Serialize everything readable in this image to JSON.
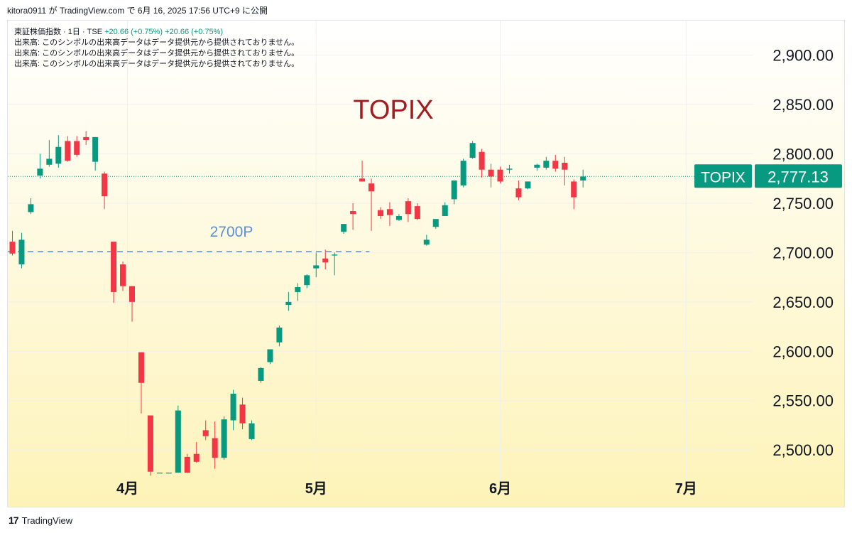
{
  "header": {
    "attribution": "kitora0911 が TradingView.com で 6月 16, 2025 17:56 UTC+9 に公開"
  },
  "legend": {
    "symbol_line": "東証株価指数 · 1日 · TSE",
    "change_1": "+20.66 (+0.75%)",
    "change_2": "+20.66 (+0.75%)",
    "volume_notes": [
      "出来高: このシンボルの出来高データはデータ提供元から提供されておりません。",
      "出来高: このシンボルの出来高データはデータ提供元から提供されておりません。",
      "出来高: このシンボルの出来高データはデータ提供元から提供されておりません。"
    ]
  },
  "footer": {
    "logo_text": "TradingView"
  },
  "colors": {
    "up": "#089981",
    "down": "#f23645",
    "title": "#a11d21",
    "annotation": "#5b8fd8",
    "price_label_bg": "#089981",
    "bg_top": "#ffffff",
    "bg_bottom": "#fdf3b8"
  },
  "chart_data": {
    "type": "candlestick",
    "title": "TOPIX",
    "annotation": "2700P",
    "reference_line": 2701,
    "last_price_label": "2,777.13",
    "last_price_value": 2777.13,
    "last_price_symbol": "TOPIX",
    "y_ticks": [
      2500,
      2550,
      2600,
      2650,
      2700,
      2750,
      2800,
      2850,
      2900
    ],
    "y_tick_labels": [
      "2,500.00",
      "2,550.00",
      "2,600.00",
      "2,650.00",
      "2,700.00",
      "2,750.00",
      "2,800.00",
      "2,850.00",
      "2,900.00"
    ],
    "ylim": [
      2467,
      2935
    ],
    "x_ticks": [
      {
        "label": "4月",
        "index": 12.5
      },
      {
        "label": "5月",
        "index": 33
      },
      {
        "label": "6月",
        "index": 53
      },
      {
        "label": "7月",
        "index": 73.2
      }
    ],
    "xlim": [
      -0.5,
      80.5
    ],
    "candles": [
      {
        "i": 0,
        "o": 2711,
        "h": 2722,
        "l": 2697,
        "c": 2699
      },
      {
        "i": 1,
        "o": 2688,
        "h": 2720,
        "l": 2684,
        "c": 2713
      },
      {
        "i": 2,
        "o": 2741,
        "h": 2755,
        "l": 2739,
        "c": 2749
      },
      {
        "i": 3,
        "o": 2778,
        "h": 2800,
        "l": 2775,
        "c": 2785
      },
      {
        "i": 4,
        "o": 2789,
        "h": 2814,
        "l": 2787,
        "c": 2795
      },
      {
        "i": 5,
        "o": 2790,
        "h": 2819,
        "l": 2786,
        "c": 2807
      },
      {
        "i": 6,
        "o": 2813,
        "h": 2818,
        "l": 2792,
        "c": 2793
      },
      {
        "i": 7,
        "o": 2813,
        "h": 2818,
        "l": 2797,
        "c": 2799
      },
      {
        "i": 8,
        "o": 2817,
        "h": 2823,
        "l": 2809,
        "c": 2814
      },
      {
        "i": 9,
        "o": 2792,
        "h": 2817,
        "l": 2783,
        "c": 2817
      },
      {
        "i": 10,
        "o": 2780,
        "h": 2782,
        "l": 2744,
        "c": 2757
      },
      {
        "i": 11,
        "o": 2711,
        "h": 2711,
        "l": 2649,
        "c": 2660
      },
      {
        "i": 12,
        "o": 2688,
        "h": 2691,
        "l": 2661,
        "c": 2666
      },
      {
        "i": 13,
        "o": 2666,
        "h": 2666,
        "l": 2630,
        "c": 2650
      },
      {
        "i": 14,
        "o": 2599,
        "h": 2599,
        "l": 2537,
        "c": 2568
      },
      {
        "i": 15,
        "o": 2535,
        "h": 2535,
        "l": 2474,
        "c": 2478
      },
      {
        "i": 16,
        "o": 2477,
        "h": 2477,
        "l": 2477,
        "c": 2477
      },
      {
        "i": 17,
        "o": 2477,
        "h": 2477,
        "l": 2477,
        "c": 2477
      },
      {
        "i": 18,
        "o": 2477,
        "h": 2545,
        "l": 2477,
        "c": 2540
      },
      {
        "i": 19,
        "o": 2493,
        "h": 2496,
        "l": 2477,
        "c": 2477
      },
      {
        "i": 20,
        "o": 2496,
        "h": 2508,
        "l": 2487,
        "c": 2488
      },
      {
        "i": 21,
        "o": 2520,
        "h": 2530,
        "l": 2510,
        "c": 2514
      },
      {
        "i": 22,
        "o": 2512,
        "h": 2529,
        "l": 2481,
        "c": 2492
      },
      {
        "i": 23,
        "o": 2492,
        "h": 2534,
        "l": 2490,
        "c": 2531
      },
      {
        "i": 24,
        "o": 2530,
        "h": 2561,
        "l": 2520,
        "c": 2557
      },
      {
        "i": 25,
        "o": 2546,
        "h": 2553,
        "l": 2521,
        "c": 2527
      },
      {
        "i": 26,
        "o": 2511,
        "h": 2530,
        "l": 2510,
        "c": 2527
      },
      {
        "i": 27,
        "o": 2570,
        "h": 2584,
        "l": 2568,
        "c": 2583
      },
      {
        "i": 28,
        "o": 2589,
        "h": 2602,
        "l": 2587,
        "c": 2602
      },
      {
        "i": 29,
        "o": 2609,
        "h": 2626,
        "l": 2605,
        "c": 2624
      },
      {
        "i": 30,
        "o": 2647,
        "h": 2660,
        "l": 2641,
        "c": 2650
      },
      {
        "i": 31,
        "o": 2660,
        "h": 2669,
        "l": 2651,
        "c": 2665
      },
      {
        "i": 32,
        "o": 2667,
        "h": 2678,
        "l": 2664,
        "c": 2677
      },
      {
        "i": 33,
        "o": 2684,
        "h": 2700,
        "l": 2675,
        "c": 2687
      },
      {
        "i": 34,
        "o": 2694,
        "h": 2703,
        "l": 2683,
        "c": 2690
      },
      {
        "i": 35,
        "o": 2697,
        "h": 2700,
        "l": 2677,
        "c": 2698
      },
      {
        "i": 36,
        "o": 2721,
        "h": 2729,
        "l": 2719,
        "c": 2729
      },
      {
        "i": 37,
        "o": 2742,
        "h": 2750,
        "l": 2723,
        "c": 2739
      },
      {
        "i": 38,
        "o": 2775,
        "h": 2793,
        "l": 2773,
        "c": 2772
      },
      {
        "i": 39,
        "o": 2770,
        "h": 2775,
        "l": 2722,
        "c": 2762
      },
      {
        "i": 40,
        "o": 2743,
        "h": 2746,
        "l": 2734,
        "c": 2737
      },
      {
        "i": 41,
        "o": 2744,
        "h": 2751,
        "l": 2727,
        "c": 2738
      },
      {
        "i": 42,
        "o": 2733,
        "h": 2739,
        "l": 2732,
        "c": 2737
      },
      {
        "i": 43,
        "o": 2752,
        "h": 2755,
        "l": 2731,
        "c": 2739
      },
      {
        "i": 44,
        "o": 2747,
        "h": 2750,
        "l": 2733,
        "c": 2734
      },
      {
        "i": 45,
        "o": 2708,
        "h": 2718,
        "l": 2707,
        "c": 2713
      },
      {
        "i": 46,
        "o": 2726,
        "h": 2733,
        "l": 2724,
        "c": 2734
      },
      {
        "i": 47,
        "o": 2737,
        "h": 2751,
        "l": 2739,
        "c": 2748
      },
      {
        "i": 48,
        "o": 2754,
        "h": 2773,
        "l": 2749,
        "c": 2773
      },
      {
        "i": 49,
        "o": 2768,
        "h": 2795,
        "l": 2766,
        "c": 2793
      },
      {
        "i": 50,
        "o": 2796,
        "h": 2813,
        "l": 2795,
        "c": 2811
      },
      {
        "i": 51,
        "o": 2802,
        "h": 2805,
        "l": 2776,
        "c": 2784
      },
      {
        "i": 52,
        "o": 2784,
        "h": 2790,
        "l": 2766,
        "c": 2777
      },
      {
        "i": 53,
        "o": 2784,
        "h": 2787,
        "l": 2770,
        "c": 2772
      },
      {
        "i": 54,
        "o": 2784,
        "h": 2789,
        "l": 2780,
        "c": 2785
      },
      {
        "i": 55,
        "o": 2765,
        "h": 2773,
        "l": 2753,
        "c": 2756
      },
      {
        "i": 56,
        "o": 2765,
        "h": 2772,
        "l": 2764,
        "c": 2772
      },
      {
        "i": 57,
        "o": 2786,
        "h": 2790,
        "l": 2783,
        "c": 2789
      },
      {
        "i": 58,
        "o": 2786,
        "h": 2797,
        "l": 2784,
        "c": 2793
      },
      {
        "i": 59,
        "o": 2793,
        "h": 2799,
        "l": 2782,
        "c": 2785
      },
      {
        "i": 60,
        "o": 2791,
        "h": 2797,
        "l": 2768,
        "c": 2784
      },
      {
        "i": 61,
        "o": 2772,
        "h": 2774,
        "l": 2744,
        "c": 2756
      },
      {
        "i": 62,
        "o": 2773,
        "h": 2784,
        "l": 2766,
        "c": 2777
      }
    ]
  }
}
